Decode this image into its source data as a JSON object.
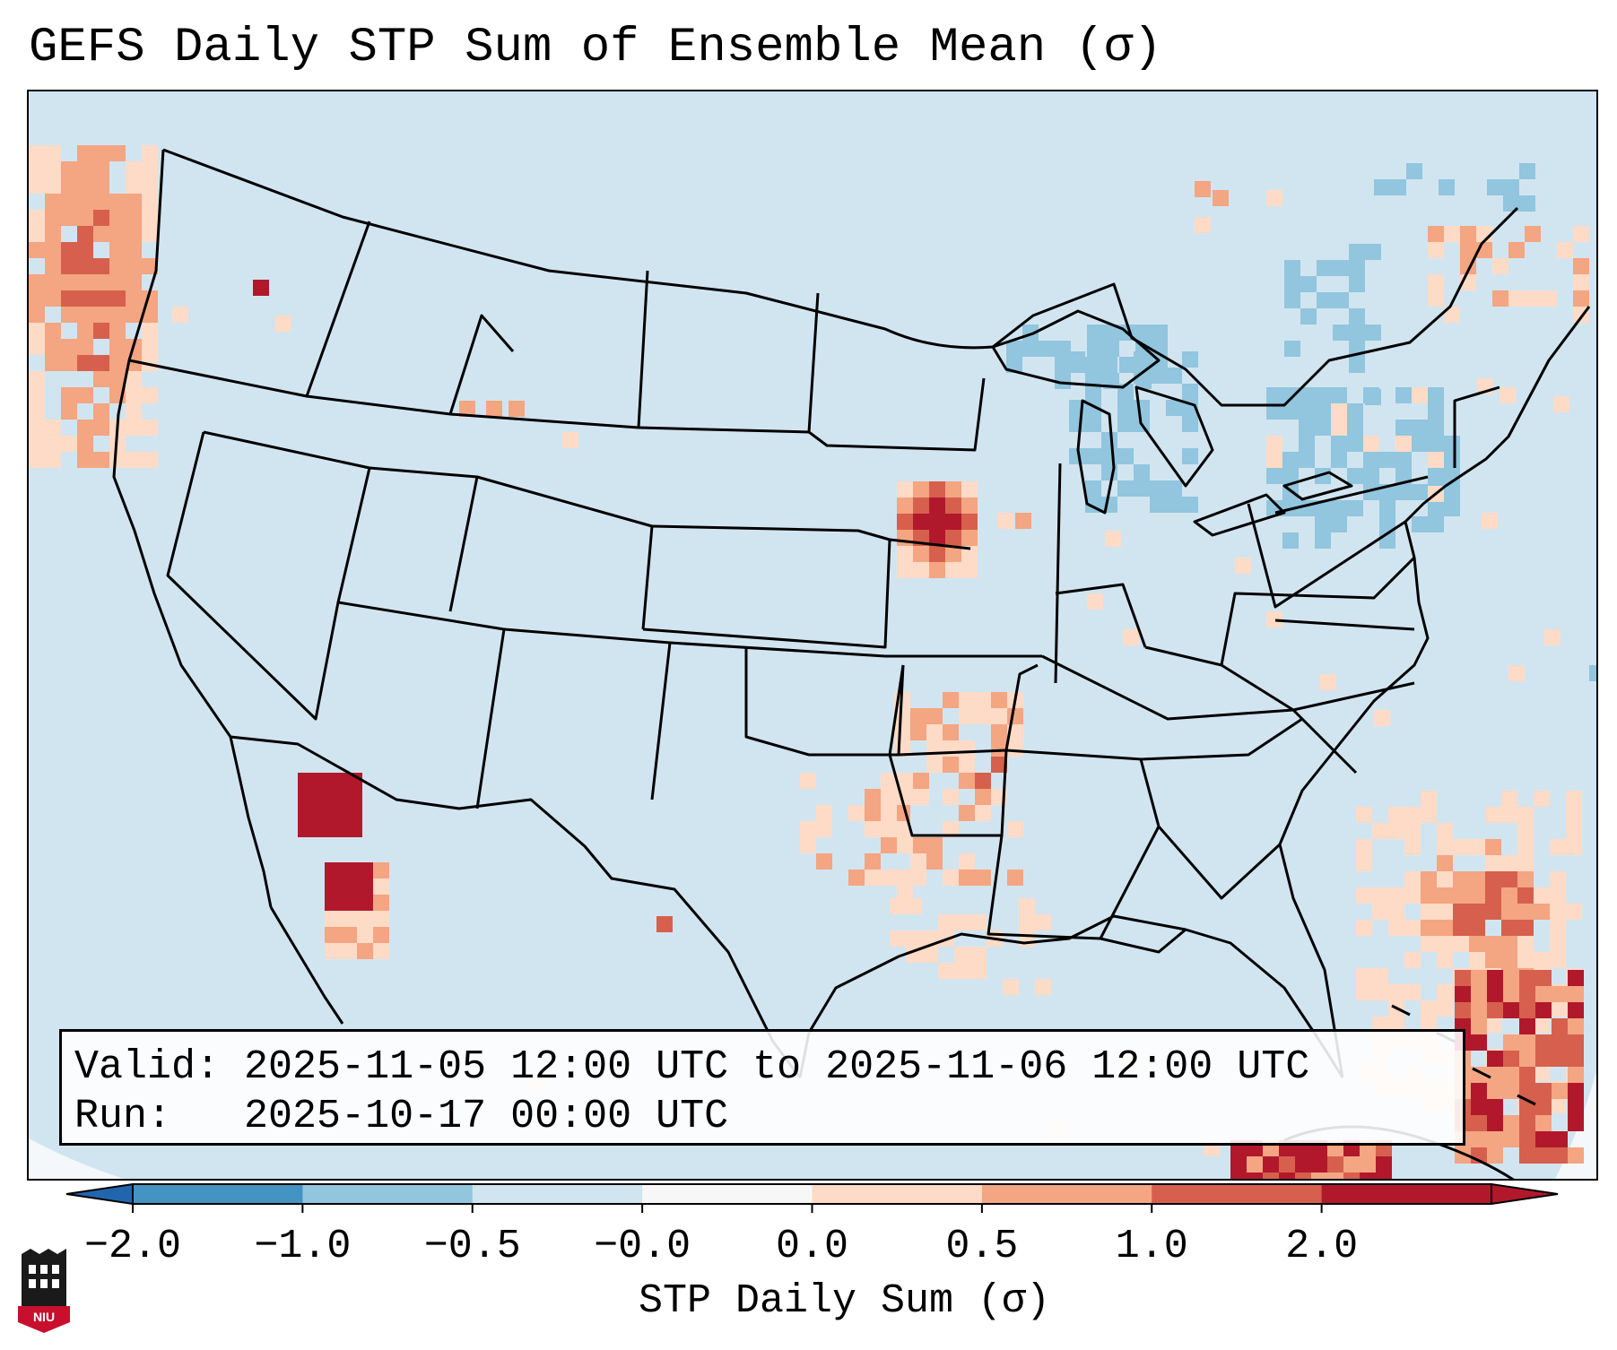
{
  "title": "GEFS Daily STP Sum of Ensemble Mean (σ)",
  "info": {
    "valid_label": "Valid:",
    "valid_value": "2025-11-05 12:00 UTC to 2025-11-06 12:00 UTC",
    "run_label": "Run:",
    "run_value": "2025-10-17 00:00 UTC"
  },
  "colorbar": {
    "label": "STP Daily Sum (σ)",
    "ticks": [
      "−2.0",
      "−1.0",
      "−0.5",
      "−0.0",
      "0.0",
      "0.5",
      "1.0",
      "2.0"
    ],
    "colors": [
      "#4393c3",
      "#92c5de",
      "#d1e5f0",
      "#f7f7f7",
      "#fddbc7",
      "#f4a582",
      "#d6604d",
      "#b2182b"
    ],
    "under_color": "#2166ac",
    "over_color": "#b2182b"
  },
  "logo": {
    "text": "NIU",
    "color": "#c8102e"
  },
  "map_colors": {
    "background": "#d1e5f0",
    "outside": "#f4f8fb",
    "border": "#000000"
  }
}
